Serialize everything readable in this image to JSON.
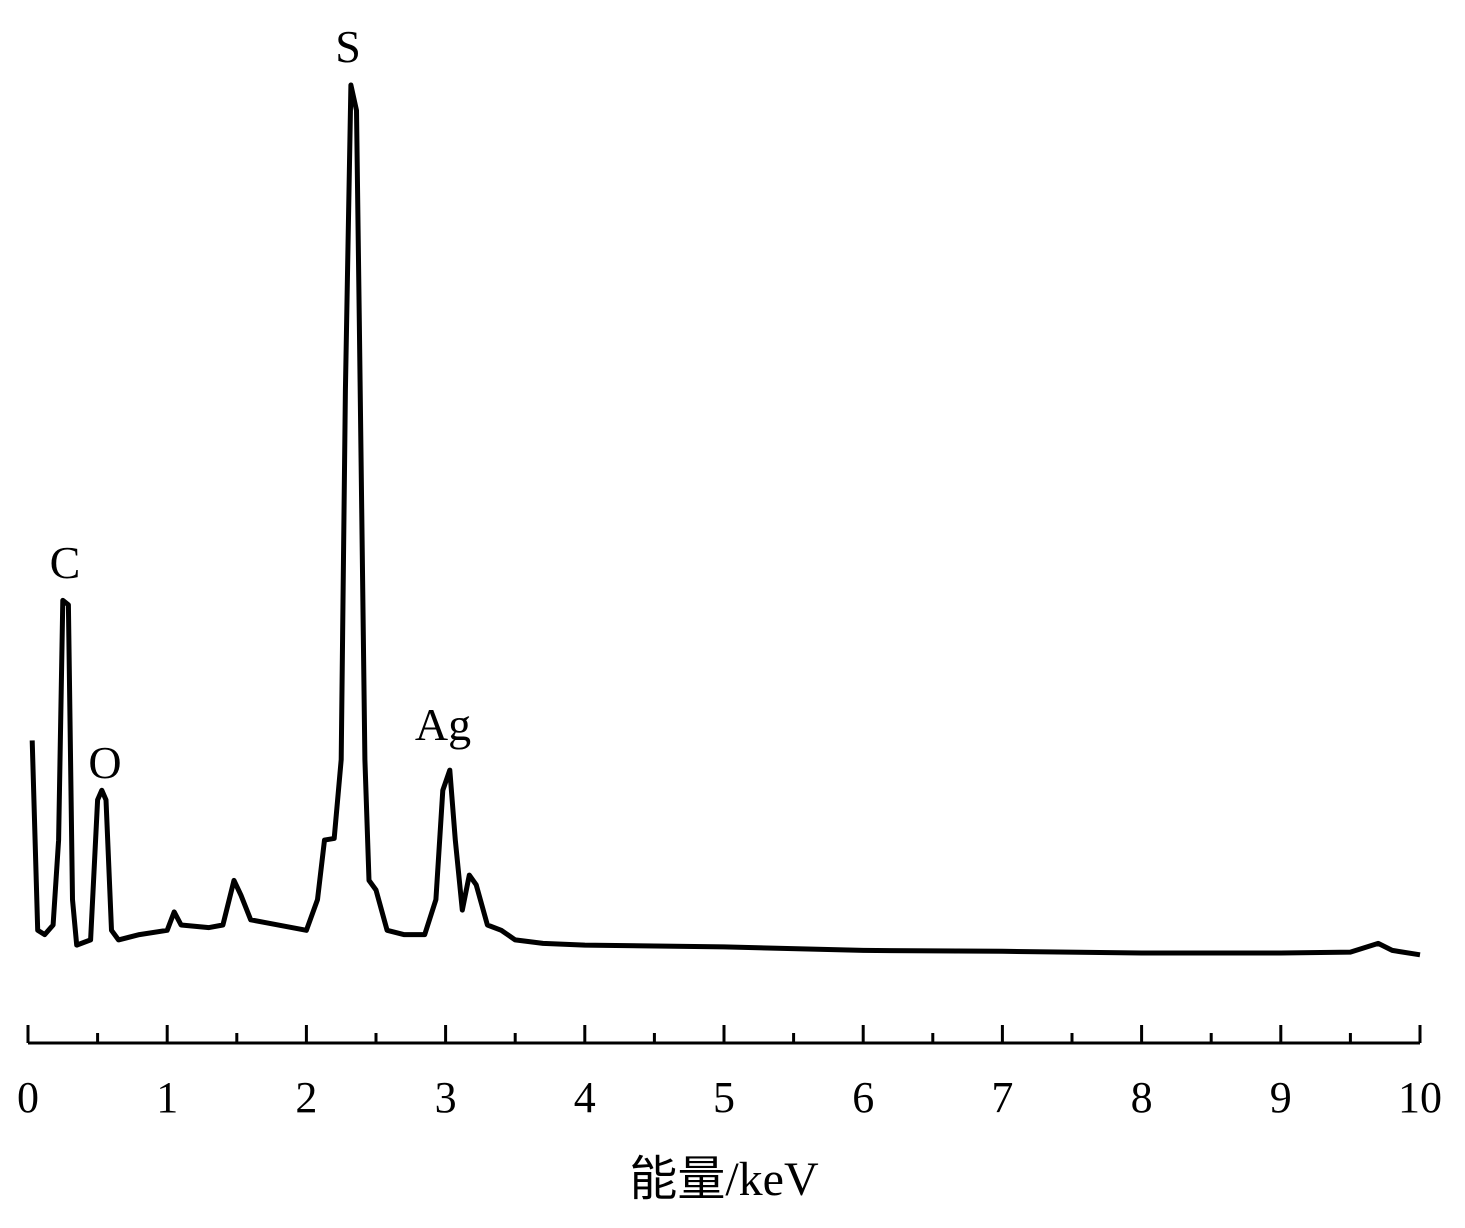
{
  "chart_data": {
    "type": "line",
    "xlabel": "能量/keV",
    "annotations": [
      "C",
      "O",
      "S",
      "Ag"
    ],
    "xlim": [
      0,
      10
    ],
    "xticks": [
      0,
      1,
      2,
      3,
      4,
      5,
      6,
      7,
      8,
      9,
      10
    ],
    "xminorticks": [
      0.5,
      1.5,
      2.5,
      3.5,
      4.5,
      5.5,
      6.5,
      7.5,
      8.5,
      9.5
    ],
    "ylim": [
      0,
      100
    ],
    "color": "#000000",
    "x": [
      0.03,
      0.07,
      0.12,
      0.18,
      0.22,
      0.25,
      0.29,
      0.32,
      0.35,
      0.45,
      0.5,
      0.53,
      0.56,
      0.6,
      0.65,
      0.8,
      1.0,
      1.05,
      1.1,
      1.3,
      1.4,
      1.48,
      1.53,
      1.6,
      1.7,
      2.0,
      2.08,
      2.13,
      2.2,
      2.25,
      2.28,
      2.32,
      2.36,
      2.38,
      2.42,
      2.45,
      2.5,
      2.58,
      2.7,
      2.85,
      2.93,
      2.98,
      3.03,
      3.07,
      3.12,
      3.17,
      3.22,
      3.3,
      3.4,
      3.5,
      3.7,
      4,
      5,
      6,
      7,
      8,
      9,
      9.5,
      9.7,
      9.8,
      10
    ],
    "values": [
      25.1,
      3.4,
      2.9,
      4.0,
      13.7,
      41.1,
      40.6,
      6.9,
      1.7,
      2.3,
      18.3,
      19.4,
      18.3,
      3.4,
      2.3,
      2.9,
      3.4,
      5.5,
      4.0,
      3.7,
      4.0,
      9.1,
      7.4,
      4.6,
      4.3,
      3.4,
      6.9,
      13.7,
      13.9,
      22.9,
      65.1,
      100,
      97.1,
      73.1,
      22.9,
      9.1,
      8.0,
      3.4,
      2.9,
      2.9,
      6.9,
      19.4,
      21.7,
      13.7,
      5.7,
      9.7,
      8.6,
      4.0,
      3.4,
      2.3,
      1.9,
      1.7,
      1.5,
      1.1,
      1.0,
      0.8,
      0.8,
      0.9,
      1.9,
      1.1,
      0.6
    ]
  }
}
